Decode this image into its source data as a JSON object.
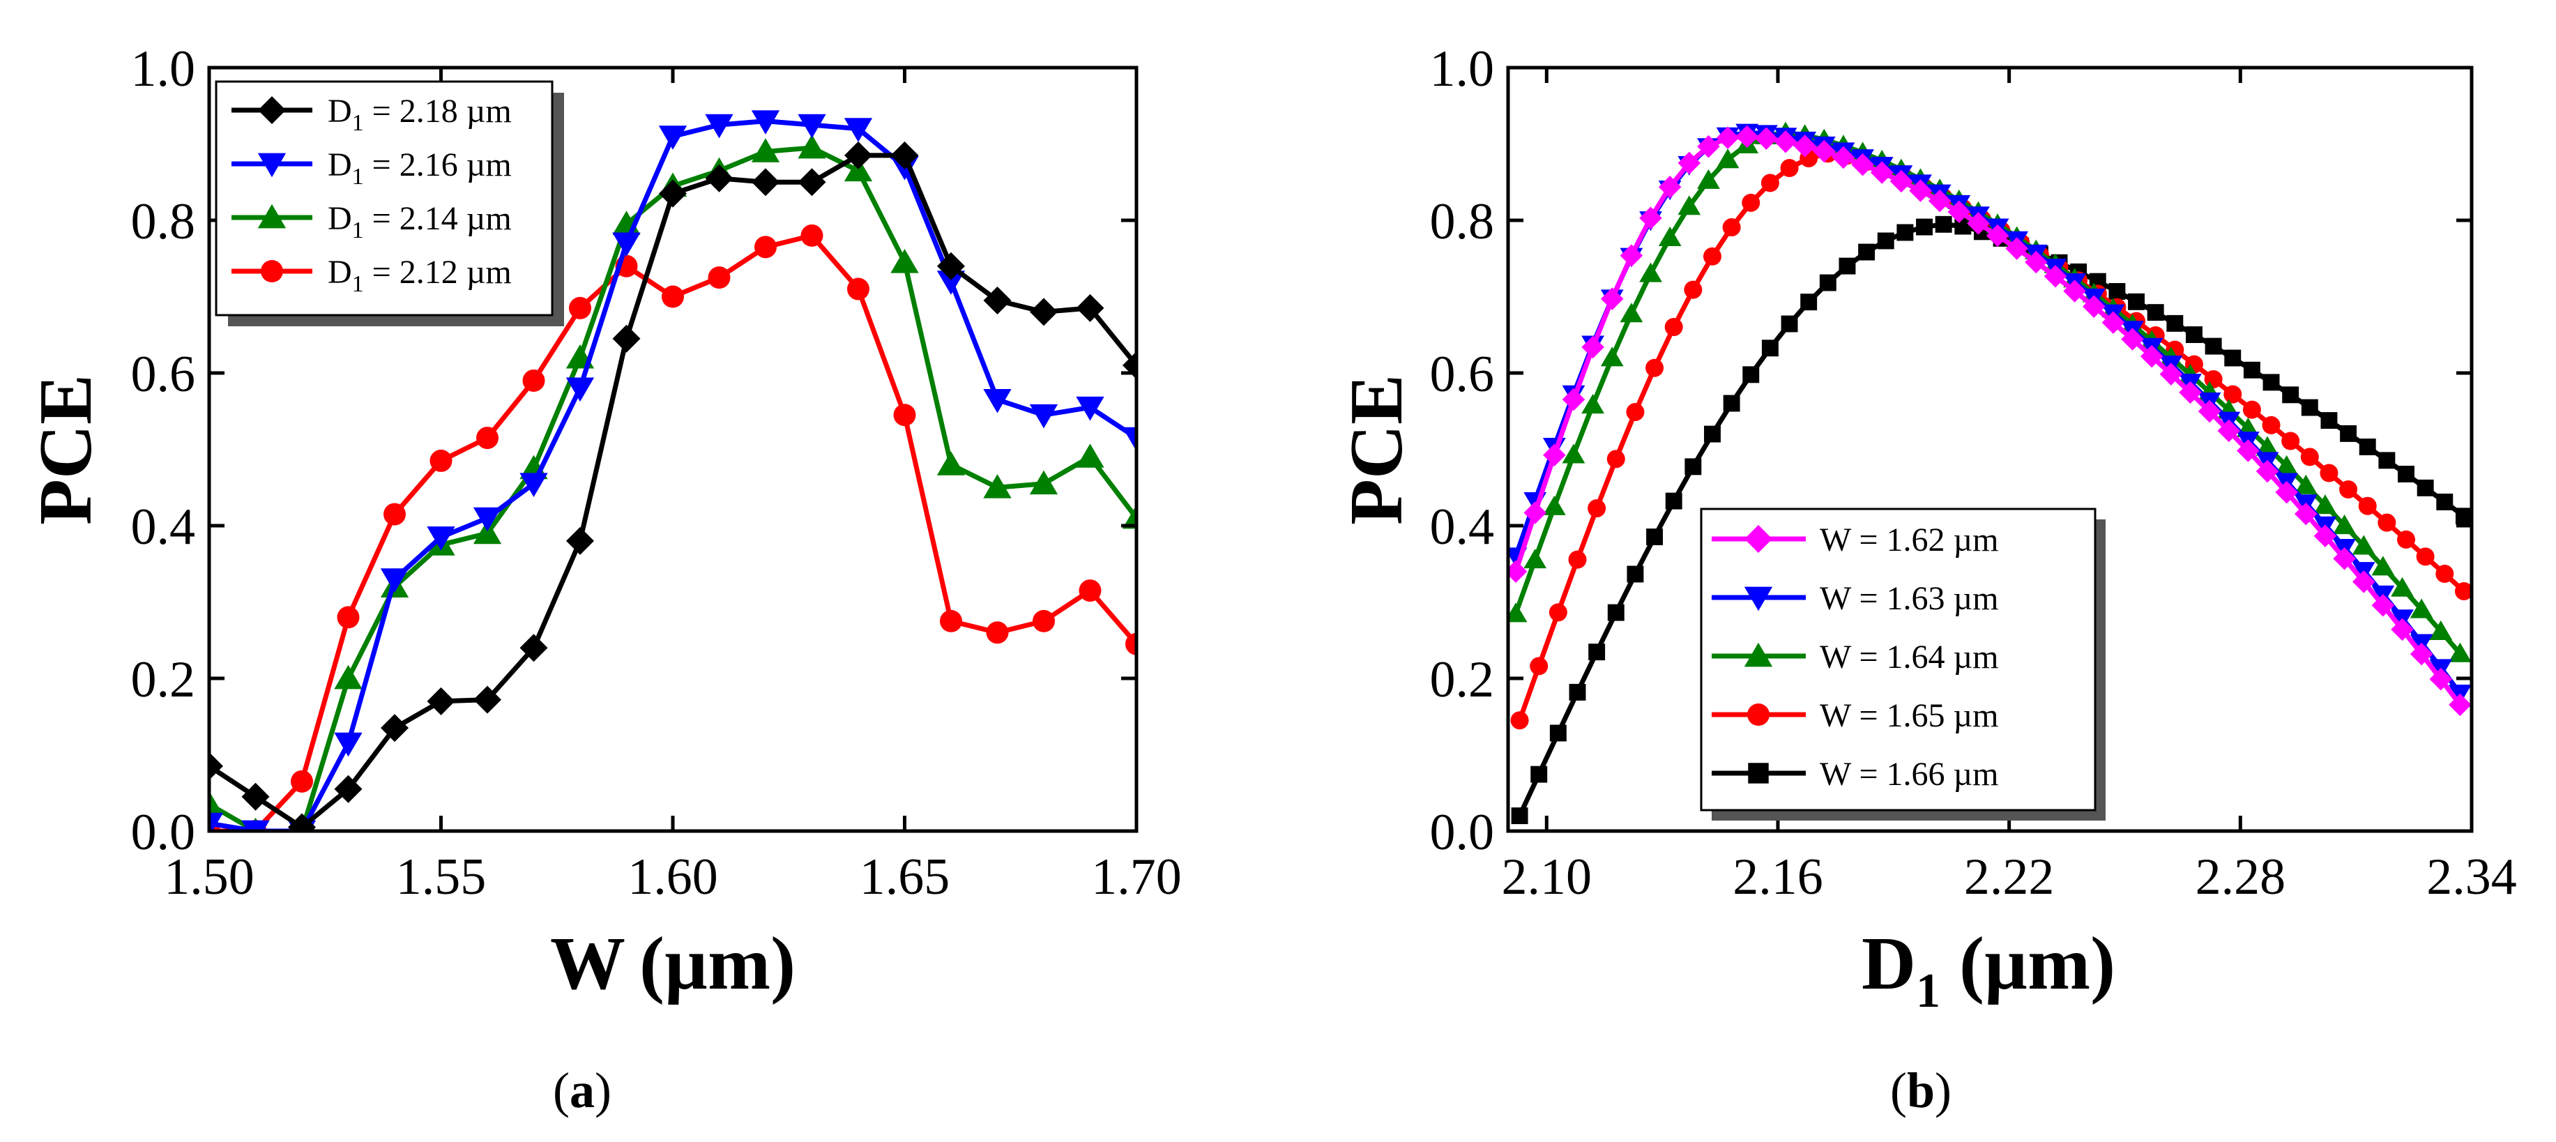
{
  "panels": {
    "a": {
      "pre": "(",
      "letter": "a",
      "post": ")"
    },
    "b": {
      "pre": "(",
      "letter": "b",
      "post": ")"
    }
  },
  "chart_data": [
    {
      "type": "line",
      "panel": "(a)",
      "xlabel_main": "W",
      "xlabel_unit": "(µm)",
      "ylabel": "PCE",
      "xlim": [
        1.5,
        1.7
      ],
      "ylim": [
        0.0,
        1.0
      ],
      "xticks": [
        "1.50",
        "1.55",
        "1.60",
        "1.65",
        "1.70"
      ],
      "yticks": [
        "0.0",
        "0.2",
        "0.4",
        "0.6",
        "0.8",
        "1.0"
      ],
      "legend_position": "top-left",
      "x": [
        1.5,
        1.51,
        1.52,
        1.53,
        1.54,
        1.55,
        1.56,
        1.57,
        1.58,
        1.59,
        1.6,
        1.61,
        1.62,
        1.63,
        1.64,
        1.65,
        1.66,
        1.67,
        1.68,
        1.69,
        1.7
      ],
      "series": [
        {
          "name": "D1 = 2.18 µm",
          "label_main": "D",
          "label_sub": "1",
          "label_rest": " = 2.18 µm",
          "color": "#000000",
          "marker": "diamond",
          "values": [
            0.085,
            0.045,
            0.005,
            0.055,
            0.135,
            0.17,
            0.172,
            0.24,
            0.38,
            0.645,
            0.835,
            0.855,
            0.85,
            0.85,
            0.885,
            0.885,
            0.74,
            0.695,
            0.68,
            0.685,
            0.61
          ]
        },
        {
          "name": "D1 = 2.16 µm",
          "label_main": "D",
          "label_sub": "1",
          "label_rest": " = 2.16 µm",
          "color": "#0000ff",
          "marker": "triangle-down",
          "values": [
            0.01,
            0.0,
            0.0,
            0.115,
            0.33,
            0.385,
            0.41,
            0.455,
            0.58,
            0.77,
            0.91,
            0.925,
            0.93,
            0.925,
            0.92,
            0.87,
            0.72,
            0.565,
            0.545,
            0.555,
            0.515
          ]
        },
        {
          "name": "D1 = 2.14 µm",
          "label_main": "D",
          "label_sub": "1",
          "label_rest": " = 2.14 µm",
          "color": "#008000",
          "marker": "triangle-up",
          "values": [
            0.035,
            0.0,
            0.0,
            0.2,
            0.32,
            0.375,
            0.39,
            0.475,
            0.62,
            0.795,
            0.845,
            0.865,
            0.89,
            0.895,
            0.865,
            0.745,
            0.48,
            0.45,
            0.455,
            0.49,
            0.41
          ]
        },
        {
          "name": "D1 = 2.12 µm",
          "label_main": "D",
          "label_sub": "1",
          "label_rest": " = 2.12 µm",
          "color": "#ff0000",
          "marker": "circle",
          "values": [
            0.0,
            0.0,
            0.065,
            0.28,
            0.415,
            0.485,
            0.515,
            0.59,
            0.685,
            0.74,
            0.7,
            0.725,
            0.765,
            0.78,
            0.71,
            0.545,
            0.275,
            0.26,
            0.275,
            0.315,
            0.245
          ]
        }
      ]
    },
    {
      "type": "line",
      "panel": "(b)",
      "xlabel_main": "D",
      "xlabel_sub": "1",
      "xlabel_unit": " (µm)",
      "ylabel": "PCE",
      "xlim": [
        2.09,
        2.34
      ],
      "ylim": [
        0.0,
        1.0
      ],
      "xticks": [
        "2.10",
        "2.16",
        "2.22",
        "2.28",
        "2.34"
      ],
      "yticks": [
        "0.0",
        "0.2",
        "0.4",
        "0.6",
        "0.8",
        "1.0"
      ],
      "legend_position": "bottom-center",
      "series": [
        {
          "name": "W = 1.62 µm",
          "color": "#ff00ff",
          "marker": "diamond",
          "peak_x": 2.15,
          "peak_y": 0.91,
          "left_x": 2.092,
          "left_y": 0.34,
          "right_y": 0.145,
          "k": 1.7
        },
        {
          "name": "W = 1.63 µm",
          "color": "#0000ff",
          "marker": "triangle-down",
          "peak_x": 2.152,
          "peak_y": 0.915,
          "left_x": 2.092,
          "left_y": 0.36,
          "right_y": 0.16,
          "k": 1.7
        },
        {
          "name": "W = 1.64 µm",
          "color": "#008000",
          "marker": "triangle-up",
          "peak_x": 2.162,
          "peak_y": 0.915,
          "left_x": 2.092,
          "left_y": 0.285,
          "right_y": 0.215,
          "k": 1.5
        },
        {
          "name": "W = 1.65 µm",
          "color": "#ff0000",
          "marker": "circle",
          "peak_x": 2.175,
          "peak_y": 0.888,
          "left_x": 2.093,
          "left_y": 0.145,
          "right_y": 0.305,
          "k": 1.3
        },
        {
          "name": "W = 1.66 µm",
          "color": "#000000",
          "marker": "square",
          "peak_x": 2.205,
          "peak_y": 0.795,
          "left_x": 2.093,
          "left_y": 0.02,
          "right_y": 0.405,
          "k": 1.3
        }
      ]
    }
  ]
}
